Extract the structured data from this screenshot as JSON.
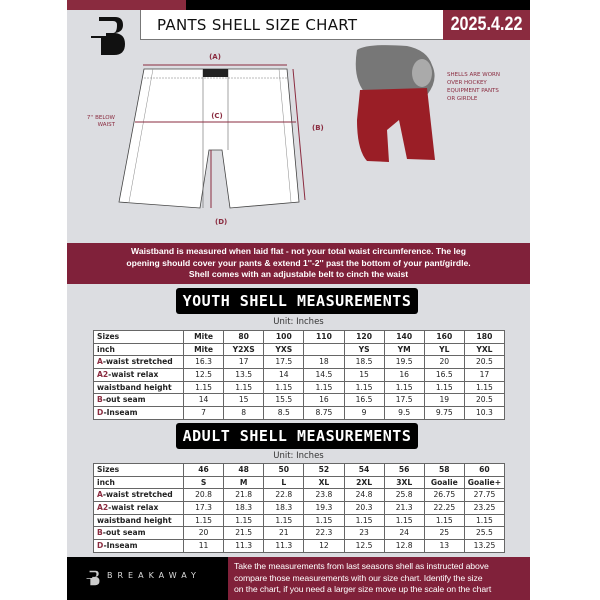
{
  "header": {
    "title": "PANTS SHELL SIZE CHART",
    "date": "2025.4.22"
  },
  "diagram": {
    "label_a": "(A)",
    "label_b": "(B)",
    "label_c": "(C)",
    "label_d": "(D)",
    "below_waist_note": [
      "7'' BELOW",
      "WAIST"
    ],
    "photo_note": [
      "SHELLS ARE WORN",
      "OVER HOCKEY",
      "EQUIPMENT PANTS",
      "OR GIRDLE"
    ]
  },
  "info_band": [
    "Waistband is measured when laid flat - not your total waist circumference. The leg",
    "opening should cover your pants & extend 1''-2'' past the bottom of your pant/girdle.",
    "Shell comes with an adjustable belt to cinch the waist"
  ],
  "youth": {
    "title": "YOUTH SHELL MEASUREMENTS",
    "unit": "Unit: Inches",
    "rows": [
      {
        "prefix": "",
        "label": "Sizes",
        "values": [
          "Mite",
          "80",
          "100",
          "110",
          "120",
          "140",
          "160",
          "180"
        ]
      },
      {
        "prefix": "",
        "label": "inch",
        "values": [
          "Mite",
          "Y2XS",
          "YXS",
          "",
          "YS",
          "YM",
          "YL",
          "YXL"
        ]
      },
      {
        "prefix": "A",
        "label": "-waist stretched",
        "values": [
          "16.3",
          "17",
          "17.5",
          "18",
          "18.5",
          "19.5",
          "20",
          "20.5"
        ]
      },
      {
        "prefix": "A2",
        "label": "-waist relax",
        "values": [
          "12.5",
          "13.5",
          "14",
          "14.5",
          "15",
          "16",
          "16.5",
          "17"
        ]
      },
      {
        "prefix": "",
        "label": "waistband height",
        "values": [
          "1.15",
          "1.15",
          "1.15",
          "1.15",
          "1.15",
          "1.15",
          "1.15",
          "1.15"
        ]
      },
      {
        "prefix": "B",
        "label": "-out seam",
        "values": [
          "14",
          "15",
          "15.5",
          "16",
          "16.5",
          "17.5",
          "19",
          "20.5"
        ]
      },
      {
        "prefix": "D",
        "label": "-Inseam",
        "values": [
          "7",
          "8",
          "8.5",
          "8.75",
          "9",
          "9.5",
          "9.75",
          "10.3"
        ]
      }
    ]
  },
  "adult": {
    "title": "ADULT SHELL MEASUREMENTS",
    "unit": "Unit: Inches",
    "rows": [
      {
        "prefix": "",
        "label": "Sizes",
        "values": [
          "46",
          "48",
          "50",
          "52",
          "54",
          "56",
          "58",
          "60"
        ]
      },
      {
        "prefix": "",
        "label": "inch",
        "values": [
          "S",
          "M",
          "L",
          "XL",
          "2XL",
          "3XL",
          "Goalie",
          "Goalie+"
        ]
      },
      {
        "prefix": "A",
        "label": "-waist stretched",
        "values": [
          "20.8",
          "21.8",
          "22.8",
          "23.8",
          "24.8",
          "25.8",
          "26.75",
          "27.75"
        ]
      },
      {
        "prefix": "A2",
        "label": "-waist relax",
        "values": [
          "17.3",
          "18.3",
          "18.3",
          "19.3",
          "20.3",
          "21.3",
          "22.25",
          "23.25"
        ]
      },
      {
        "prefix": "",
        "label": "waistband height",
        "values": [
          "1.15",
          "1.15",
          "1.15",
          "1.15",
          "1.15",
          "1.15",
          "1.15",
          "1.15"
        ]
      },
      {
        "prefix": "B",
        "label": "-out seam",
        "values": [
          "20",
          "21.5",
          "21",
          "22.3",
          "23",
          "24",
          "25",
          "25.5"
        ]
      },
      {
        "prefix": "D",
        "label": "-Inseam",
        "values": [
          "11",
          "11.3",
          "11.3",
          "12",
          "12.5",
          "12.8",
          "13",
          "13.25"
        ]
      }
    ]
  },
  "footer": {
    "brand": "BREAKAWAY",
    "instructions": [
      "Take the measurements from last seasons shell as instructed above",
      "compare those measurements  with our size chart. Identify the size",
      "on the chart, if you need a larger size move up the scale on the chart"
    ]
  },
  "colors": {
    "accent": "#80213a",
    "background": "#dcdde1"
  }
}
